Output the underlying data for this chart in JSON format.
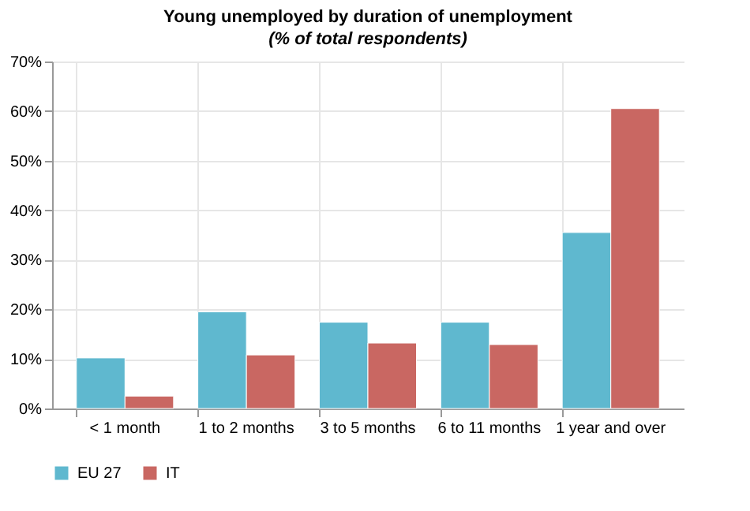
{
  "chart_data": {
    "type": "bar",
    "title": "Young unemployed by duration of unemployment",
    "subtitle": "(% of total respondents)",
    "categories": [
      "< 1 month",
      "1 to 2 months",
      "3 to 5 months",
      "6 to 11 months",
      "1 year and over"
    ],
    "series": [
      {
        "name": "EU 27",
        "color": "#5fb8cf",
        "values": [
          10.2,
          19.5,
          17.4,
          17.4,
          35.5
        ]
      },
      {
        "name": "IT",
        "color": "#c96762",
        "values": [
          2.5,
          10.8,
          13.2,
          12.9,
          60.5
        ]
      }
    ],
    "ylim": [
      0,
      70
    ],
    "yticks": [
      {
        "value": 0,
        "label": "0%"
      },
      {
        "value": 10,
        "label": "10%"
      },
      {
        "value": 20,
        "label": "20%"
      },
      {
        "value": 30,
        "label": "30%"
      },
      {
        "value": 40,
        "label": "40%"
      },
      {
        "value": 50,
        "label": "50%"
      },
      {
        "value": 60,
        "label": "60%"
      },
      {
        "value": 70,
        "label": "70%"
      }
    ],
    "grid": true,
    "legend": "bottom"
  }
}
